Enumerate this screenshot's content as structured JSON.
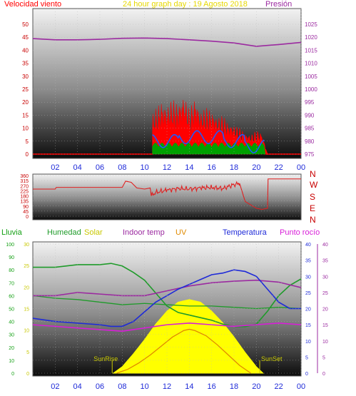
{
  "colors": {
    "wind_speed": "#ff0000",
    "wind_gust_fill": "#ff0000",
    "wind_avg": "#1e5aff",
    "wind_low": "#00a000",
    "pressure": "#9b2aa0",
    "direction": "#e02020",
    "humidity": "#1f9b2a",
    "solar": "#ffff00",
    "indoor_temp": "#9b2aa0",
    "uv": "#e08a00",
    "temperature": "#1e2ad8",
    "dew_point": "#d81ed8",
    "axis_text": "#1e2ad8",
    "rain_axis": "#14a014"
  },
  "header": {
    "wind_label": "Velocidad viento",
    "title": "24 hour graph day : 19 Agosto 2018",
    "pressure_label": "Presión"
  },
  "panel2": {
    "compass": [
      "N",
      "W",
      "S",
      "E",
      "N"
    ]
  },
  "legend": {
    "rain": "Lluvia",
    "humidity": "Humedad",
    "solar": "Solar",
    "indoor": "Indoor temp",
    "uv": "UV",
    "temperature": "Temperatura",
    "dew": "Punto rocío"
  },
  "sun": {
    "sunrise": "SunRise",
    "sunset": "SunSet"
  },
  "chart_data": [
    {
      "type": "line",
      "title": "24 hour graph day : 19 Agosto 2018",
      "x_ticks": [
        "02",
        "04",
        "06",
        "08",
        "10",
        "12",
        "14",
        "16",
        "18",
        "20",
        "22",
        "00"
      ],
      "xlim": [
        0,
        24
      ],
      "y_left_ticks": [
        0,
        5,
        10,
        15,
        20,
        25,
        30,
        35,
        40,
        45,
        50
      ],
      "ylim_left": [
        0,
        50
      ],
      "y_right_ticks": [
        975,
        980,
        985,
        990,
        995,
        1000,
        1005,
        1010,
        1015,
        1020,
        1025
      ],
      "ylim_right": [
        975,
        1025
      ],
      "series": [
        {
          "name": "Velocidad viento",
          "axis": "left",
          "x": [
            10.7,
            11.0,
            11.5,
            12.0,
            12.5,
            13.0,
            13.5,
            14.0,
            14.5,
            15.0,
            15.5,
            16.0,
            16.5,
            17.0,
            17.5,
            18.0,
            18.5,
            19.0,
            19.5,
            20.0,
            20.5,
            21.0
          ],
          "y": [
            16,
            18,
            21,
            19,
            22,
            20,
            24,
            18,
            23,
            17,
            19,
            18,
            15,
            16,
            13,
            12,
            11,
            9,
            8,
            10,
            9,
            0
          ]
        },
        {
          "name": "Presión",
          "axis": "right",
          "x": [
            0,
            2,
            4,
            6,
            8,
            10,
            12,
            14,
            16,
            18,
            20,
            22,
            24
          ],
          "y": [
            1019.5,
            1019.0,
            1019.0,
            1019.2,
            1019.6,
            1019.7,
            1019.5,
            1019.0,
            1018.5,
            1017.8,
            1016.5,
            1017.2,
            1018.0
          ]
        }
      ]
    },
    {
      "type": "line",
      "x_ticks": [],
      "xlim": [
        0,
        24
      ],
      "y_ticks": [
        0,
        45,
        90,
        135,
        180,
        225,
        270,
        315,
        360
      ],
      "ylim": [
        0,
        360
      ],
      "series": [
        {
          "name": "direction",
          "x": [
            0,
            2,
            2.1,
            8.0,
            8.3,
            8.8,
            9.3,
            10.0,
            10.5,
            10.6,
            11.0,
            12,
            13,
            14,
            15,
            16,
            17,
            18,
            18.5,
            19.0,
            19.5,
            20.0,
            20.5,
            21.0,
            21.05,
            24
          ],
          "y": [
            240,
            240,
            255,
            255,
            310,
            300,
            250,
            240,
            250,
            180,
            210,
            230,
            245,
            240,
            250,
            255,
            245,
            280,
            290,
            130,
            100,
            70,
            60,
            70,
            330,
            330
          ]
        }
      ]
    },
    {
      "type": "line",
      "x_ticks": [
        "02",
        "04",
        "06",
        "08",
        "10",
        "12",
        "14",
        "16",
        "18",
        "20",
        "22",
        "00"
      ],
      "xlim": [
        0,
        24
      ],
      "y_hum_ticks": [
        0,
        10,
        20,
        30,
        40,
        50,
        60,
        70,
        80,
        90,
        100
      ],
      "y_rain_ticks": [
        0,
        5,
        10,
        15,
        20,
        25,
        30
      ],
      "y_temp_ticks": [
        0,
        5,
        10,
        15,
        20,
        25,
        30,
        35,
        40
      ],
      "y_temp2_ticks": [
        0,
        5,
        10,
        15,
        20,
        25,
        30,
        35,
        40
      ],
      "series": [
        {
          "name": "Humedad",
          "axis": "hum",
          "x": [
            0,
            2,
            4,
            6,
            7,
            8,
            9,
            10,
            11,
            12,
            13,
            14,
            15,
            16,
            17,
            18,
            19,
            20,
            21,
            22,
            23,
            24
          ],
          "y": [
            82,
            82,
            84,
            84,
            85,
            83,
            78,
            72,
            62,
            52,
            47,
            45,
            43,
            41,
            38,
            36,
            36,
            38,
            48,
            60,
            68,
            73
          ]
        },
        {
          "name": "Humedad (2)",
          "axis": "hum",
          "x": [
            0,
            2,
            4,
            6,
            8,
            10,
            12,
            14,
            16,
            18,
            20,
            22,
            24
          ],
          "y": [
            60,
            58,
            57,
            55,
            53,
            54,
            53,
            52,
            52,
            51,
            50,
            51,
            50
          ]
        },
        {
          "name": "Solar",
          "axis": "hum",
          "x": [
            7.2,
            8,
            9,
            10,
            11,
            12,
            13,
            14,
            15,
            16,
            17,
            18,
            19,
            20,
            20.6
          ],
          "y": [
            0,
            5,
            15,
            26,
            38,
            48,
            55,
            57,
            55,
            48,
            39,
            28,
            16,
            5,
            0
          ]
        },
        {
          "name": "Indoor temp",
          "axis": "temp",
          "x": [
            0,
            2,
            4,
            6,
            8,
            10,
            12,
            14,
            16,
            18,
            20,
            22,
            24
          ],
          "y": [
            24,
            24,
            25,
            24.5,
            24,
            24,
            25.5,
            27,
            28,
            28.5,
            28.8,
            28.2,
            26.5
          ]
        },
        {
          "name": "UV",
          "axis": "hum",
          "x": [
            7.5,
            8.5,
            9.5,
            10.5,
            11.5,
            12.5,
            13.5,
            14.0,
            14.5,
            15.5,
            16.5,
            17.5,
            18.5,
            19.5
          ],
          "y": [
            0,
            3,
            8,
            14,
            21,
            28,
            33,
            34,
            33,
            29,
            22,
            14,
            6,
            0
          ]
        },
        {
          "name": "Temperatura",
          "axis": "temp",
          "x": [
            0,
            2,
            4,
            6,
            7,
            8,
            9,
            10,
            11,
            12,
            13,
            14,
            15,
            16,
            17,
            18,
            19,
            20,
            21,
            22,
            23,
            24
          ],
          "y": [
            17,
            16,
            15.5,
            15,
            14.5,
            14.5,
            16,
            19,
            22,
            24,
            26,
            27.5,
            29,
            30.5,
            31,
            32,
            31.5,
            30,
            26,
            22,
            20,
            20
          ]
        },
        {
          "name": "Punto rocío",
          "axis": "temp",
          "x": [
            0,
            2,
            4,
            6,
            8,
            10,
            12,
            14,
            16,
            18,
            20,
            22,
            24
          ],
          "y": [
            15,
            14.5,
            14,
            13.5,
            13,
            14,
            15,
            15.5,
            15,
            14.5,
            15,
            15.5,
            15
          ]
        }
      ]
    }
  ]
}
